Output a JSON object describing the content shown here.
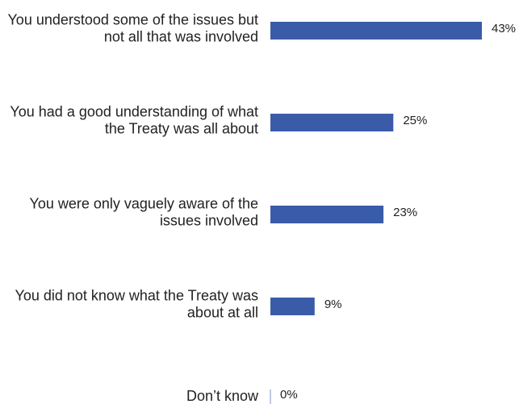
{
  "chart_data": {
    "type": "bar",
    "orientation": "horizontal",
    "categories": [
      [
        "You understood some of the issues but",
        "not all that was involved"
      ],
      [
        "You had a good understanding of what",
        "the Treaty was all about"
      ],
      [
        "You were only vaguely aware of the",
        "issues involved"
      ],
      [
        "You did not know what the Treaty was",
        "about at all"
      ],
      [
        "Don’t know"
      ]
    ],
    "values": [
      43,
      25,
      23,
      9,
      0
    ],
    "value_labels": [
      "43%",
      "25%",
      "23%",
      "9%",
      "0%"
    ],
    "xlim": [
      0,
      43
    ],
    "bar_color": "#3A5BA8",
    "axis_color": "#A9B8D9",
    "grid": false,
    "legend": "none"
  }
}
